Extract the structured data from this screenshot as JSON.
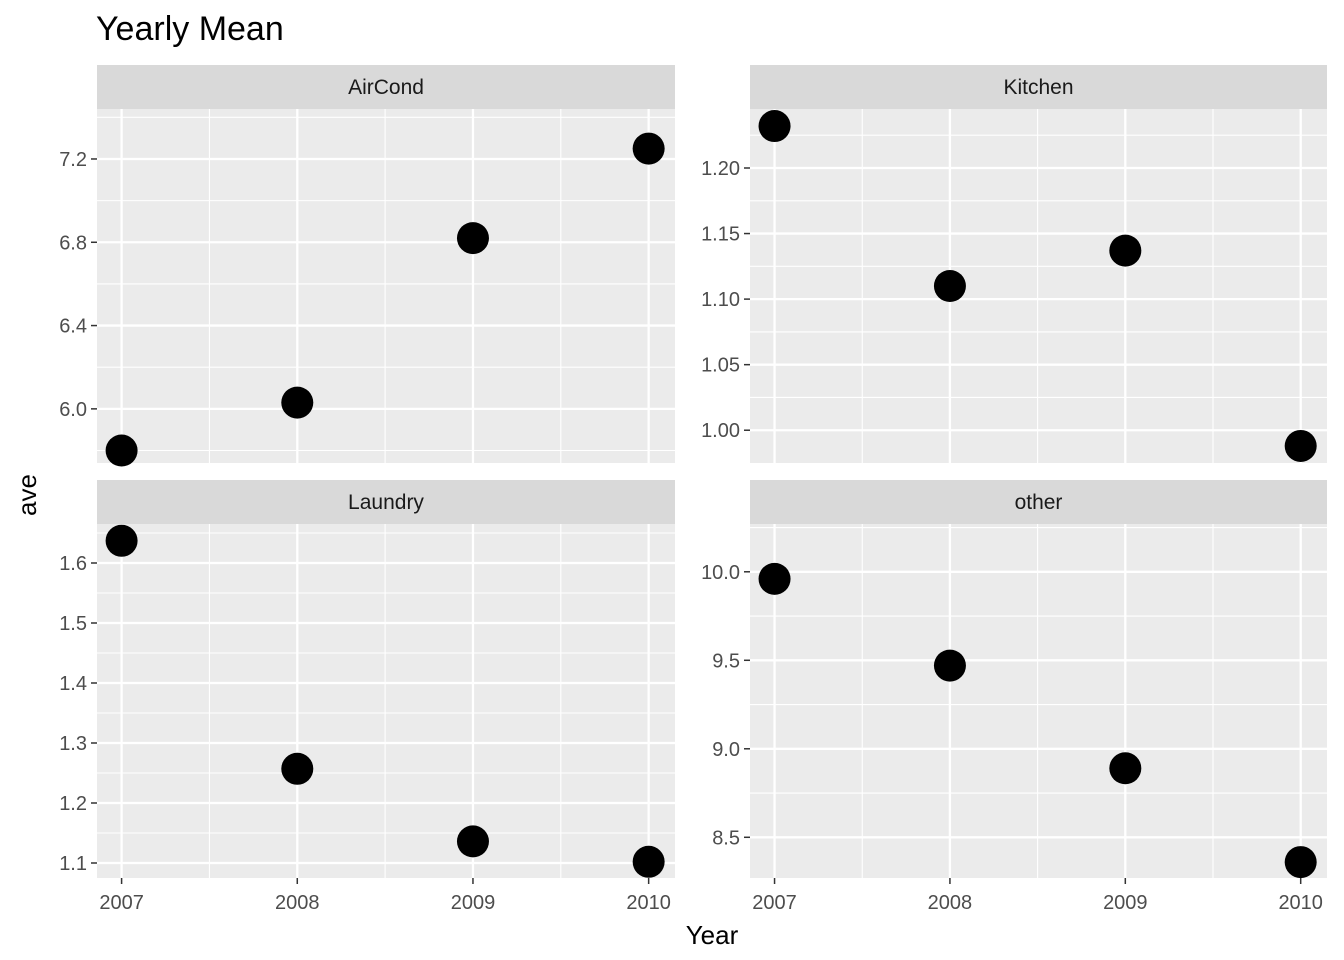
{
  "title": "Yearly Mean",
  "xlabel": "Year",
  "ylabel": "ave",
  "colors": {
    "panel_bg": "#ebebeb",
    "strip_bg": "#d9d9d9",
    "grid": "#ffffff",
    "point": "#000000",
    "tick_text": "#4d4d4d"
  },
  "chart_data": [
    {
      "type": "scatter",
      "facet": "AirCond",
      "x": [
        2007,
        2008,
        2009,
        2010
      ],
      "y": [
        5.8,
        6.03,
        6.82,
        7.25
      ],
      "xlim": [
        2006.86,
        2010.15
      ],
      "ylim": [
        5.74,
        7.44
      ],
      "xticks": [
        2007,
        2008,
        2009,
        2010
      ],
      "yticks": [
        6.0,
        6.4,
        6.8,
        7.2
      ],
      "ytick_labels": [
        "6.0",
        "6.4",
        "6.8",
        "7.2"
      ],
      "show_xticks": false
    },
    {
      "type": "scatter",
      "facet": "Kitchen",
      "x": [
        2007,
        2008,
        2009,
        2010
      ],
      "y": [
        1.232,
        1.11,
        1.137,
        0.988
      ],
      "xlim": [
        2006.86,
        2010.15
      ],
      "ylim": [
        0.975,
        1.245
      ],
      "xticks": [
        2007,
        2008,
        2009,
        2010
      ],
      "yticks": [
        1.0,
        1.05,
        1.1,
        1.15,
        1.2
      ],
      "ytick_labels": [
        "1.00",
        "1.05",
        "1.10",
        "1.15",
        "1.20"
      ],
      "show_xticks": false
    },
    {
      "type": "scatter",
      "facet": "Laundry",
      "x": [
        2007,
        2008,
        2009,
        2010
      ],
      "y": [
        1.637,
        1.257,
        1.136,
        1.102
      ],
      "xlim": [
        2006.86,
        2010.15
      ],
      "ylim": [
        1.075,
        1.665
      ],
      "xticks": [
        2007,
        2008,
        2009,
        2010
      ],
      "yticks": [
        1.1,
        1.2,
        1.3,
        1.4,
        1.5,
        1.6
      ],
      "ytick_labels": [
        "1.1",
        "1.2",
        "1.3",
        "1.4",
        "1.5",
        "1.6"
      ],
      "xtick_labels": [
        "2007",
        "2008",
        "2009",
        "2010"
      ],
      "show_xticks": true
    },
    {
      "type": "scatter",
      "facet": "other",
      "x": [
        2007,
        2008,
        2009,
        2010
      ],
      "y": [
        9.96,
        9.47,
        8.89,
        8.36
      ],
      "xlim": [
        2006.86,
        2010.15
      ],
      "ylim": [
        8.27,
        10.27
      ],
      "xticks": [
        2007,
        2008,
        2009,
        2010
      ],
      "yticks": [
        8.5,
        9.0,
        9.5,
        10.0
      ],
      "ytick_labels": [
        "8.5",
        "9.0",
        "9.5",
        "10.0"
      ],
      "xtick_labels": [
        "2007",
        "2008",
        "2009",
        "2010"
      ],
      "show_xticks": true
    }
  ]
}
